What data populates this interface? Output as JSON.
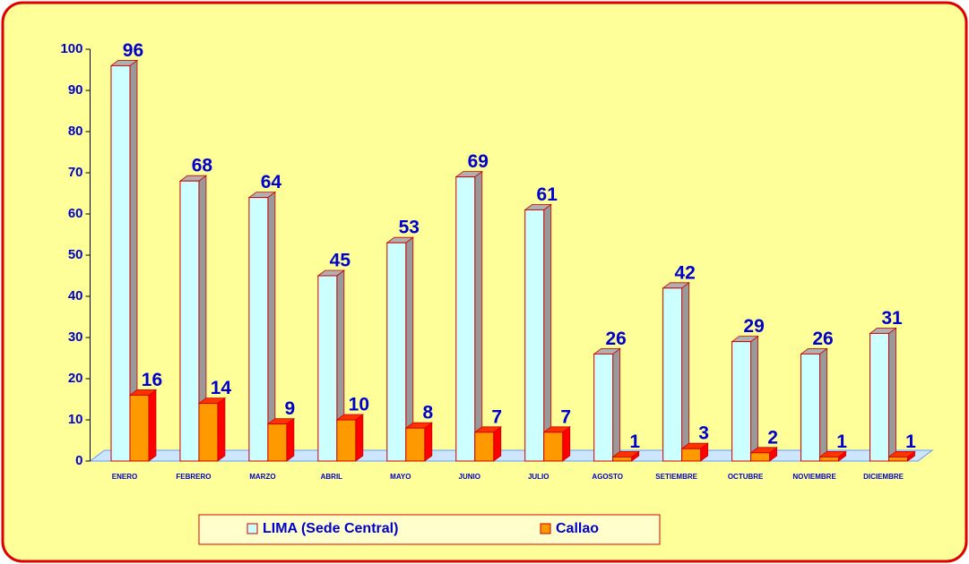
{
  "chart_data": {
    "type": "bar3d",
    "categories": [
      "ENERO",
      "FEBRERO",
      "MARZO",
      "ABRIL",
      "MAYO",
      "JUNIO",
      "JULIO",
      "AGOSTO",
      "SETIEMBRE",
      "OCTUBRE",
      "NOVIEMBRE",
      "DICIEMBRE"
    ],
    "series": [
      {
        "name": "LIMA (Sede Central)",
        "color": "#ccffff",
        "values": [
          96,
          68,
          64,
          45,
          53,
          69,
          61,
          26,
          42,
          29,
          26,
          31
        ]
      },
      {
        "name": "Callao",
        "color": "#ff9900",
        "values": [
          16,
          14,
          9,
          10,
          8,
          7,
          7,
          1,
          3,
          2,
          1,
          1
        ]
      }
    ],
    "ylim": [
      0,
      100
    ],
    "yticks": [
      0,
      10,
      20,
      30,
      40,
      50,
      60,
      70,
      80,
      90,
      100
    ],
    "grid": false,
    "legend": "bottom"
  }
}
